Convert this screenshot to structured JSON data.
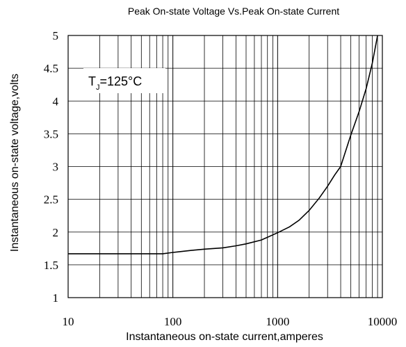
{
  "chart_data": {
    "type": "line",
    "title": "Peak On-state Voltage Vs.Peak On-state Current",
    "xlabel": "Instantaneous on-state current,amperes",
    "ylabel": "Instantaneous on-state voltage,volts",
    "x_scale": "log",
    "xlim": [
      10,
      10000
    ],
    "ylim": [
      1,
      5
    ],
    "x_ticks": [
      "10",
      "100",
      "1000",
      "10000"
    ],
    "y_ticks": [
      "1",
      "1.5",
      "2",
      "2.5",
      "3",
      "3.5",
      "4",
      "4.5",
      "5"
    ],
    "grid": true,
    "annotation": {
      "main": "T",
      "sub": "J",
      "rest": "=125°C"
    },
    "series": [
      {
        "x": [
          10,
          20,
          40,
          80,
          100,
          150,
          200,
          300,
          400,
          500,
          700,
          1000,
          1300,
          1600,
          2000,
          2500,
          3000,
          3500,
          4000,
          5000,
          6000,
          7000,
          8000,
          9000
        ],
        "y": [
          1.67,
          1.67,
          1.67,
          1.67,
          1.69,
          1.72,
          1.74,
          1.76,
          1.79,
          1.82,
          1.88,
          1.99,
          2.08,
          2.18,
          2.33,
          2.52,
          2.7,
          2.87,
          3.0,
          3.48,
          3.84,
          4.19,
          4.57,
          5.0
        ]
      }
    ]
  }
}
